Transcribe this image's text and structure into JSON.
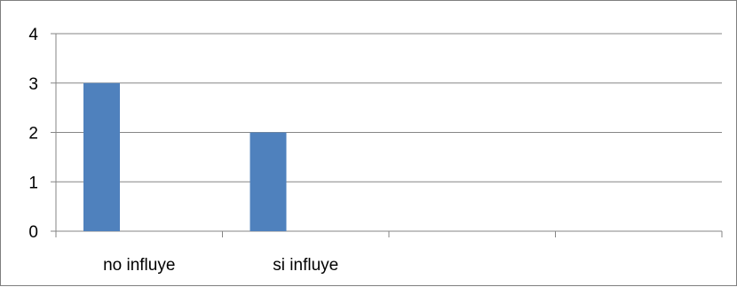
{
  "chart_data": {
    "type": "bar",
    "categories": [
      "no influye",
      "si influye",
      "",
      ""
    ],
    "series": [
      {
        "values": [
          3,
          2,
          null,
          null
        ]
      }
    ],
    "title": "",
    "xlabel": "",
    "ylabel": "",
    "ylim": [
      0,
      4
    ],
    "yticks": [
      0,
      1,
      2,
      3,
      4
    ],
    "grid": true,
    "legend": "none",
    "bar_color": "#4f81bd",
    "grid_color": "#868686"
  }
}
